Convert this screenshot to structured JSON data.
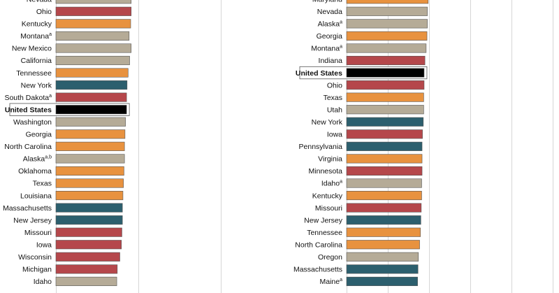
{
  "chart_data": [
    {
      "type": "bar",
      "orientation": "horizontal",
      "grid": true,
      "categories": [
        "Nevada",
        "Ohio",
        "Kentucky",
        "Montana",
        "New Mexico",
        "California",
        "Tennessee",
        "New York",
        "South Dakota",
        "United States",
        "Washington",
        "Georgia",
        "North Carolina",
        "Alaska",
        "Oklahoma",
        "Texas",
        "Louisiana",
        "Massachusetts",
        "New Jersey",
        "Missouri",
        "Iowa",
        "Wisconsin",
        "Michigan",
        "Idaho"
      ],
      "superscripts": [
        "",
        "",
        "",
        "a",
        "",
        "",
        "",
        "",
        "a",
        "",
        "",
        "",
        "",
        "a,b",
        "",
        "",
        "",
        "",
        "",
        "",
        "",
        "",
        "",
        ""
      ],
      "highlight": "United States",
      "values": [
        14.6,
        14.6,
        14.5,
        14.2,
        14.6,
        14.3,
        14.0,
        13.8,
        13.7,
        13.7,
        13.5,
        13.4,
        13.3,
        13.3,
        13.2,
        13.1,
        13.0,
        12.9,
        12.9,
        12.8,
        12.7,
        12.4,
        11.9,
        11.8
      ],
      "colors": [
        "#b5ab97",
        "#b5474b",
        "#e8923f",
        "#b5ab97",
        "#b5ab97",
        "#b5ab97",
        "#e8923f",
        "#2c5f6e",
        "#b5474b",
        "#000000",
        "#b5ab97",
        "#e8923f",
        "#e8923f",
        "#b5ab97",
        "#e8923f",
        "#e8923f",
        "#e8923f",
        "#2c5f6e",
        "#2c5f6e",
        "#b5474b",
        "#b5474b",
        "#b5474b",
        "#b5474b",
        "#b5ab97"
      ],
      "xlim": [
        0,
        50
      ]
    },
    {
      "type": "bar",
      "orientation": "horizontal",
      "grid": true,
      "categories": [
        "Maryland",
        "Nevada",
        "Alaska",
        "Georgia",
        "Montana",
        "Indiana",
        "United States",
        "Ohio",
        "Texas",
        "Utah",
        "New York",
        "Iowa",
        "Pennsylvania",
        "Virginia",
        "Minnesota",
        "Idaho",
        "Kentucky",
        "Missouri",
        "New Jersey",
        "Tennessee",
        "North Carolina",
        "Oregon",
        "Massachusetts",
        "Maine"
      ],
      "superscripts": [
        "",
        "",
        "a",
        "",
        "a",
        "",
        "",
        "",
        "",
        "",
        "",
        "",
        "",
        "",
        "",
        "a",
        "",
        "",
        "",
        "",
        "",
        "",
        "",
        "a"
      ],
      "highlight": "United States",
      "values": [
        20.0,
        19.8,
        19.8,
        19.7,
        19.5,
        19.2,
        19.0,
        19.0,
        18.9,
        18.9,
        18.8,
        18.6,
        18.5,
        18.5,
        18.5,
        18.4,
        18.4,
        18.3,
        18.2,
        18.1,
        17.9,
        17.6,
        17.5,
        17.4
      ],
      "colors": [
        "#e8923f",
        "#b5ab97",
        "#b5ab97",
        "#e8923f",
        "#b5ab97",
        "#b5474b",
        "#000000",
        "#b5474b",
        "#e8923f",
        "#b5ab97",
        "#2c5f6e",
        "#b5474b",
        "#2c5f6e",
        "#e8923f",
        "#b5474b",
        "#b5ab97",
        "#e8923f",
        "#b5474b",
        "#2c5f6e",
        "#e8923f",
        "#e8923f",
        "#b5ab97",
        "#2c5f6e",
        "#2c5f6e"
      ],
      "xlim": [
        0,
        50
      ]
    }
  ]
}
